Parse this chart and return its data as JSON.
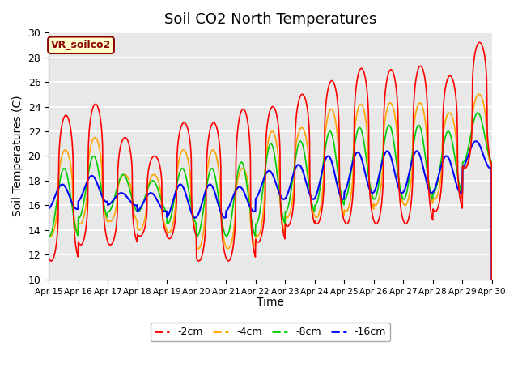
{
  "title": "Soil CO2 North Temperatures",
  "xlabel": "Time",
  "ylabel": "Soil Temperatures (C)",
  "ylim": [
    10,
    30
  ],
  "annotation": "VR_soilco2",
  "background_color": "#e8e8e8",
  "grid_color": "#ffffff",
  "series_colors": {
    "-2cm": "#ff0000",
    "-4cm": "#ffa500",
    "-8cm": "#00cc00",
    "-16cm": "#0000ff"
  },
  "xtick_labels": [
    "Apr 15",
    "Apr 16",
    "Apr 17",
    "Apr 18",
    "Apr 19",
    "Apr 20",
    "Apr 21",
    "Apr 22",
    "Apr 23",
    "Apr 24",
    "Apr 25",
    "Apr 26",
    "Apr 27",
    "Apr 28",
    "Apr 29",
    "Apr 30"
  ],
  "ytick_values": [
    10,
    12,
    14,
    16,
    18,
    20,
    22,
    24,
    26,
    28,
    30
  ],
  "days": 15,
  "ppd": 96,
  "mins_2cm": [
    11.5,
    12.8,
    12.8,
    13.5,
    13.3,
    11.5,
    11.5,
    13.0,
    14.3,
    14.5,
    14.5,
    14.5,
    14.5,
    15.5,
    19.0
  ],
  "maxs_2cm": [
    23.3,
    24.2,
    21.5,
    20.0,
    22.7,
    22.7,
    23.8,
    24.0,
    25.0,
    26.1,
    27.1,
    27.0,
    27.3,
    26.5,
    29.2
  ],
  "mins_4cm": [
    13.5,
    14.5,
    14.7,
    14.0,
    13.8,
    12.5,
    12.5,
    13.5,
    15.0,
    15.0,
    15.5,
    16.0,
    16.0,
    16.5,
    19.0
  ],
  "maxs_4cm": [
    20.5,
    21.5,
    18.5,
    18.5,
    20.5,
    20.5,
    19.0,
    22.0,
    22.3,
    23.8,
    24.2,
    24.3,
    24.3,
    23.5,
    25.0
  ],
  "mins_8cm": [
    13.5,
    15.0,
    15.5,
    15.5,
    14.5,
    13.5,
    13.5,
    14.5,
    15.5,
    16.0,
    16.5,
    16.5,
    16.5,
    17.0,
    19.5
  ],
  "maxs_8cm": [
    19.0,
    20.0,
    18.5,
    18.0,
    19.0,
    19.0,
    19.5,
    21.0,
    21.2,
    22.0,
    22.3,
    22.5,
    22.5,
    22.0,
    23.5
  ],
  "mins_16cm": [
    15.7,
    16.3,
    16.0,
    15.5,
    15.0,
    15.0,
    15.5,
    16.5,
    16.5,
    16.5,
    17.0,
    17.0,
    17.0,
    17.0,
    19.0
  ],
  "maxs_16cm": [
    17.7,
    18.4,
    17.0,
    17.0,
    17.7,
    17.7,
    17.5,
    18.8,
    19.3,
    20.0,
    20.3,
    20.4,
    20.4,
    20.0,
    21.2
  ],
  "peak_hour": 14,
  "phase_lag_4cm": 0.5,
  "phase_lag_8cm": 1.5,
  "phase_lag_16cm": 3.0,
  "sharpness": 3.0
}
